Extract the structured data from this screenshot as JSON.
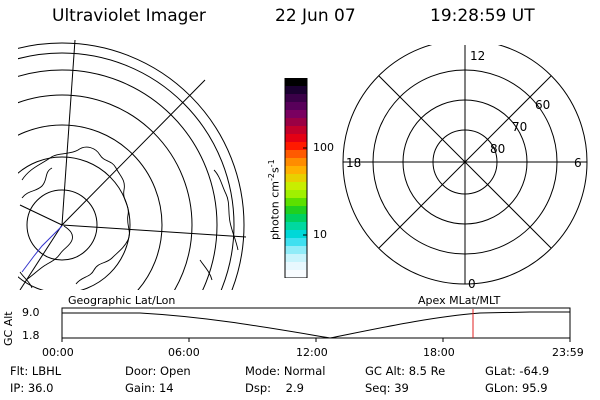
{
  "header": {
    "instrument": "Ultraviolet Imager",
    "date": "22 Jun 07",
    "time": "19:28:59 UT"
  },
  "colorbar": {
    "unit_label": "photon cm",
    "unit_exp1": "-2",
    "unit_mid": "s",
    "unit_exp2": "-1",
    "tick_high": "100",
    "tick_low": "10",
    "colors": [
      "#000000",
      "#1a0030",
      "#3a0048",
      "#58005a",
      "#7a0060",
      "#9a0044",
      "#c2002a",
      "#e40014",
      "#ff1a00",
      "#ff5a00",
      "#ff8c00",
      "#ffb000",
      "#e8d000",
      "#c8ee00",
      "#a0f000",
      "#5ce000",
      "#20d020",
      "#00d060",
      "#00d8a0",
      "#00d8d8",
      "#40e0f0",
      "#90ecf8",
      "#c8f4fc",
      "#e8f8fe",
      "#f8fcff"
    ]
  },
  "right_plot": {
    "lt_top": "12",
    "lt_bottom": "0",
    "lt_left": "18",
    "lt_right": "6",
    "lat_60": "60",
    "lat_70": "70",
    "lat_80": "80"
  },
  "altitude_panel": {
    "axis_label": "GC Alt",
    "y_high": "9.0",
    "y_low": "1.8",
    "left_title": "Geographic Lat/Lon",
    "right_title": "Apex MLat/MLT",
    "x_ticks": [
      "00:00",
      "06:00",
      "12:00",
      "18:00",
      "23:59"
    ]
  },
  "status": {
    "filter": "Flt: LBHL",
    "ip": "IP: 36.0",
    "door": "Door: Open",
    "gain": "Gain: 14",
    "mode": "Mode: Normal",
    "dsp_label": "Dsp:",
    "dsp_value": "2.9",
    "gc_alt": "GC Alt: 8.5 Re",
    "seq": "Seq: 39",
    "glat": "GLat: -64.9",
    "glon": "GLon: 95.9"
  }
}
